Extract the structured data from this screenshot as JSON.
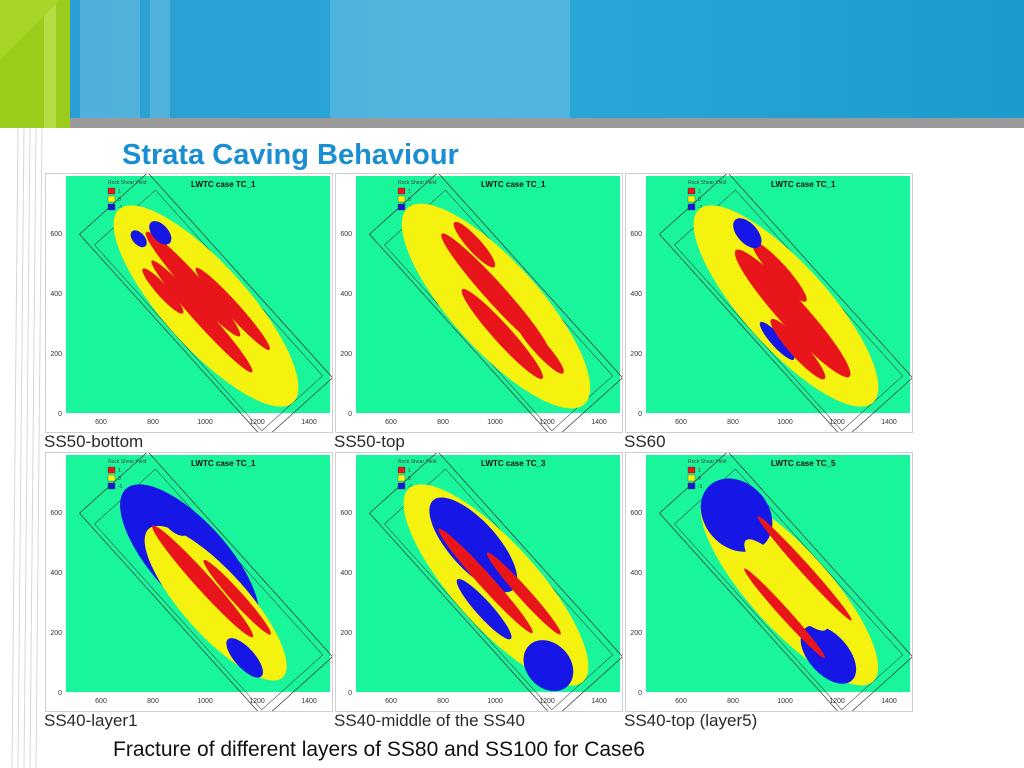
{
  "slide": {
    "title": "Strata Caving Behaviour",
    "caption": "Fracture of different layers of SS80 and SS100 for Case6",
    "colors": {
      "accent_blue": "#1c9fd0",
      "accent_green": "#9ccc1b",
      "title_color": "#1a8ed2",
      "plot_background": "#19f59a"
    }
  },
  "panels": [
    {
      "label": "SS50-bottom",
      "plot_title": "LWTC case TC_1",
      "legend_title": "Rock Shear Yield",
      "legend": [
        "1",
        "0",
        "-1"
      ]
    },
    {
      "label": "SS50-top",
      "plot_title": "LWTC case TC_1",
      "legend_title": "Rock Shear Yield",
      "legend": [
        "1",
        "0",
        "-1"
      ]
    },
    {
      "label": "SS60",
      "plot_title": "LWTC case TC_1",
      "legend_title": "Rock Shear Yield",
      "legend": [
        "1",
        "0",
        "-1"
      ]
    },
    {
      "label": "SS40-layer1",
      "plot_title": "LWTC case TC_1",
      "legend_title": "Rock Shear Yield",
      "legend": [
        "1",
        "0",
        "-1"
      ]
    },
    {
      "label": "SS40-middle of the SS40",
      "plot_title": "LWTC case TC_3",
      "legend_title": "Rock Shear Yield",
      "legend": [
        "1",
        "0",
        "-1"
      ]
    },
    {
      "label": "SS40-top (layer5)",
      "plot_title": "LWTC case TC_5",
      "legend_title": "Rock Shear Yield",
      "legend": [
        "1",
        "0",
        "-1"
      ]
    }
  ],
  "axes": {
    "x_ticks": [
      "600",
      "800",
      "1000",
      "1200",
      "1400"
    ],
    "y_ticks": [
      "0",
      "200",
      "400",
      "600",
      "800"
    ]
  },
  "legend_colors": [
    "#e8151b",
    "#f5f20f",
    "#1616e6"
  ]
}
